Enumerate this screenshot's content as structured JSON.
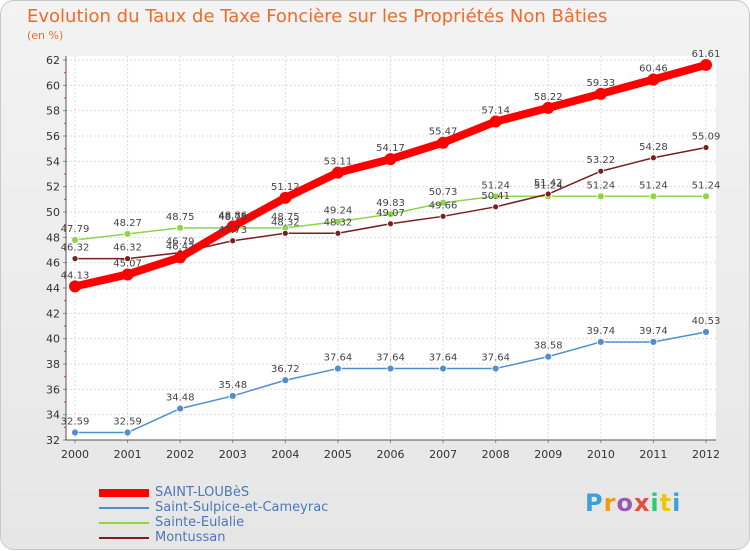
{
  "title": "Evolution du Taux de Taxe Foncière sur les Propriétés Non Bâties",
  "subtitle": "(en %)",
  "logo": {
    "letters": [
      "P",
      "r",
      "o",
      "x",
      "i",
      "t",
      "i"
    ],
    "colors": [
      "#3aa1d8",
      "#f39c12",
      "#9b59b6",
      "#e74c3c",
      "#2ecc71",
      "#f1c40f",
      "#3aa1d8"
    ]
  },
  "chart_data": {
    "type": "line",
    "title": "Evolution du Taux de Taxe Foncière sur les Propriétés Non Bâties",
    "ylabel": "(en %)",
    "x": [
      "2000",
      "2001",
      "2002",
      "2003",
      "2004",
      "2005",
      "2006",
      "2007",
      "2008",
      "2009",
      "2010",
      "2011",
      "2012"
    ],
    "ylim": [
      32,
      62
    ],
    "yticks": [
      "32",
      "34",
      "36",
      "38",
      "40",
      "42",
      "44",
      "46",
      "48",
      "50",
      "52",
      "54",
      "56",
      "58",
      "60",
      "62"
    ],
    "series": [
      {
        "name": "SAINT-LOUBèS",
        "color": "#ff0000",
        "values": [
          44.13,
          45.07,
          46.42,
          48.86,
          51.12,
          53.11,
          54.17,
          55.47,
          57.14,
          58.22,
          59.33,
          60.46,
          61.61
        ],
        "labels": [
          "44.13",
          "45.07",
          "46.42",
          "48.86",
          "51.12",
          "53.11",
          "54.17",
          "55.47",
          "57.14",
          "58.22",
          "59.33",
          "60.46",
          "61.61"
        ]
      },
      {
        "name": "Saint-Sulpice-et-Cameyrac",
        "color": "#4f8fd0",
        "values": [
          32.59,
          32.59,
          34.48,
          35.48,
          36.72,
          37.64,
          37.64,
          37.64,
          37.64,
          38.58,
          39.74,
          39.74,
          40.53
        ],
        "labels": [
          "32.59",
          "32.59",
          "34.48",
          "35.48",
          "36.72",
          "37.64",
          "37.64",
          "37.64",
          "37.64",
          "38.58",
          "39.74",
          "39.74",
          "40.53"
        ]
      },
      {
        "name": "Sainte-Eulalie",
        "color": "#8fd44a",
        "values": [
          47.79,
          48.27,
          48.75,
          48.75,
          48.75,
          49.24,
          49.83,
          50.73,
          51.24,
          51.24,
          51.24,
          51.24,
          51.24
        ],
        "labels": [
          "47.79",
          "48.27",
          "48.75",
          "48.75",
          "48.75",
          "49.24",
          "49.83",
          "50.73",
          "51.24",
          "51.24",
          "51.24",
          "51.24",
          "51.24"
        ]
      },
      {
        "name": "Montussan",
        "color": "#7a1f1f",
        "values": [
          46.32,
          46.32,
          46.79,
          47.73,
          48.32,
          48.32,
          49.07,
          49.66,
          50.41,
          51.42,
          53.22,
          54.28,
          55.09
        ],
        "labels": [
          "46.32",
          "46.32",
          "46.79",
          "47.73",
          "48.32",
          "48.32",
          "49.07",
          "49.66",
          "50.41",
          "51.42",
          "53.22",
          "54.28",
          "55.09"
        ]
      }
    ]
  }
}
